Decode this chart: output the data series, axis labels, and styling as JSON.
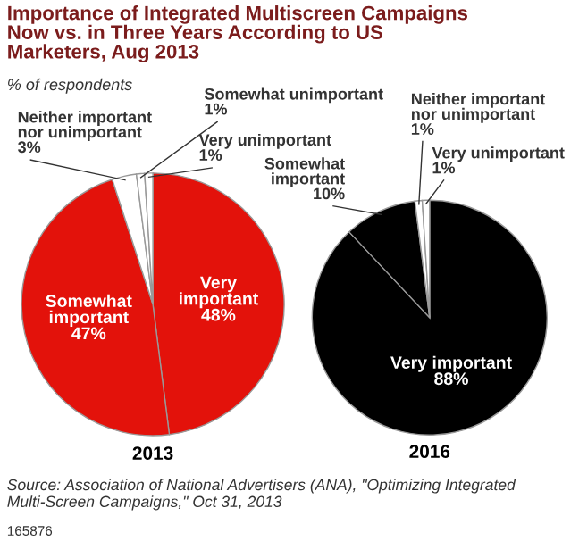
{
  "chart_data": [
    {
      "type": "pie",
      "title": "Importance of Integrated Multiscreen Campaigns Now vs. in Three Years According to US Marketers, Aug 2013",
      "subtitle": "% of respondents",
      "xlabel": "2013",
      "categories": [
        "Very important",
        "Somewhat important",
        "Neither important nor unimportant",
        "Somewhat unimportant",
        "Very unimportant"
      ],
      "values": [
        48,
        47,
        3,
        1,
        1
      ],
      "value_labels": [
        "48%",
        "47%",
        "3%",
        "1%",
        "1%"
      ],
      "colors": [
        "#e3120b",
        "#e3120b",
        "#ffffff",
        "#ffffff",
        "#ffffff"
      ]
    },
    {
      "type": "pie",
      "xlabel": "2016",
      "categories": [
        "Very important",
        "Somewhat important",
        "Neither important nor unimportant",
        "Very unimportant"
      ],
      "values": [
        88,
        10,
        1,
        1
      ],
      "value_labels": [
        "88%",
        "10%",
        "1%",
        "1%"
      ],
      "colors": [
        "#000000",
        "#000000",
        "#ffffff",
        "#ffffff"
      ],
      "annotations": [
        "Source: Association of National Advertisers (ANA), \"Optimizing Integrated Multi-Screen Campaigns,\" Oct 31, 2013",
        "165876"
      ]
    }
  ]
}
